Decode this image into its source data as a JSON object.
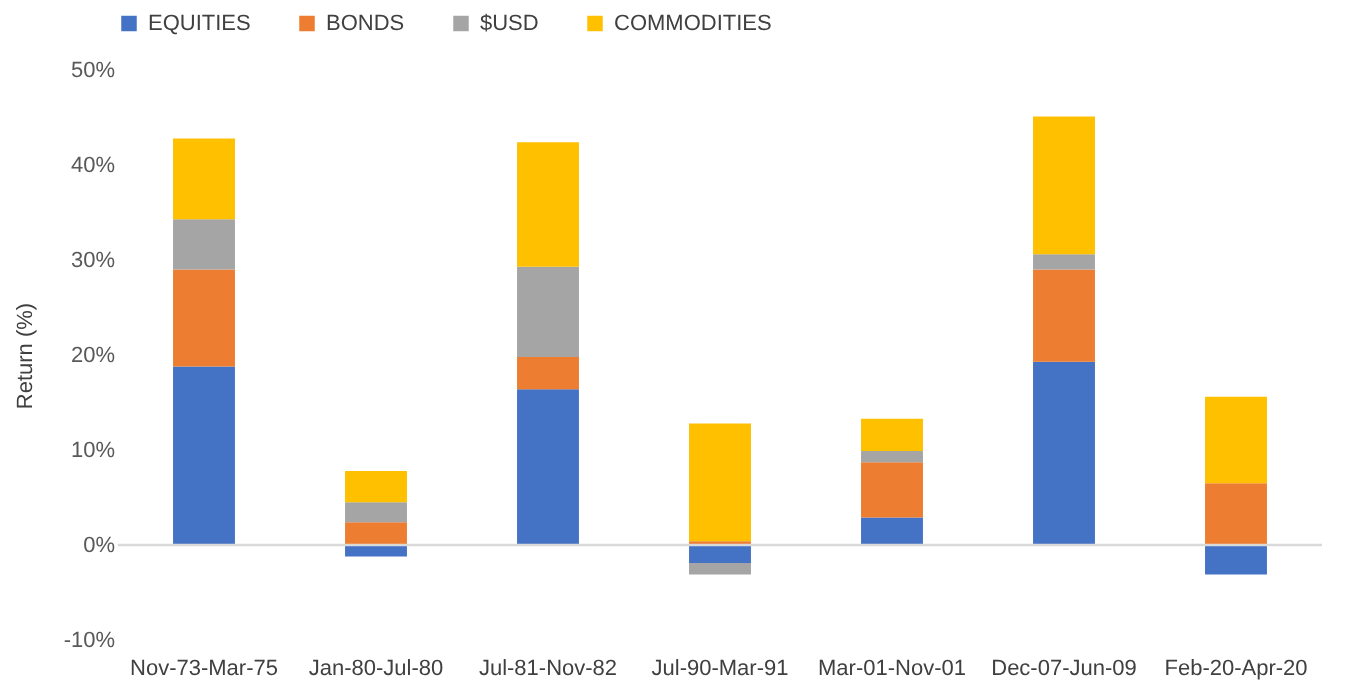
{
  "chart_data": {
    "type": "bar",
    "stacked": true,
    "ylabel": "Return (%)",
    "categories": [
      "Nov-73-Mar-75",
      "Jan-80-Jul-80",
      "Jul-81-Nov-82",
      "Jul-90-Mar-91",
      "Mar-01-Nov-01",
      "Dec-07-Jun-09",
      "Feb-20-Apr-20"
    ],
    "series": [
      {
        "name": "EQUITIES",
        "color": "#4472c4",
        "values": [
          18.8,
          -1.2,
          16.4,
          -1.9,
          2.9,
          19.3,
          -3.1
        ]
      },
      {
        "name": "BONDS",
        "color": "#ed7d31",
        "values": [
          10.2,
          2.4,
          3.4,
          0.4,
          5.8,
          9.7,
          6.5
        ]
      },
      {
        "name": "$USD",
        "color": "#a5a5a5",
        "values": [
          5.3,
          2.1,
          9.5,
          -1.2,
          1.2,
          1.6,
          0
        ]
      },
      {
        "name": "COMMODITIES",
        "color": "#ffc000",
        "values": [
          8.5,
          3.3,
          13.1,
          12.4,
          3.4,
          14.5,
          9.1
        ]
      }
    ],
    "ylim": [
      -10,
      50
    ],
    "yticks": [
      {
        "value": -10,
        "label": "-10%"
      },
      {
        "value": 0,
        "label": "0%"
      },
      {
        "value": 10,
        "label": "10%"
      },
      {
        "value": 20,
        "label": "20%"
      },
      {
        "value": 30,
        "label": "30%"
      },
      {
        "value": 40,
        "label": "40%"
      },
      {
        "value": 50,
        "label": "50%"
      }
    ],
    "ref_lines": [
      {
        "axis": "y",
        "value": 0,
        "color": "#d9d9d9"
      }
    ],
    "grid": false,
    "legend": "top"
  }
}
